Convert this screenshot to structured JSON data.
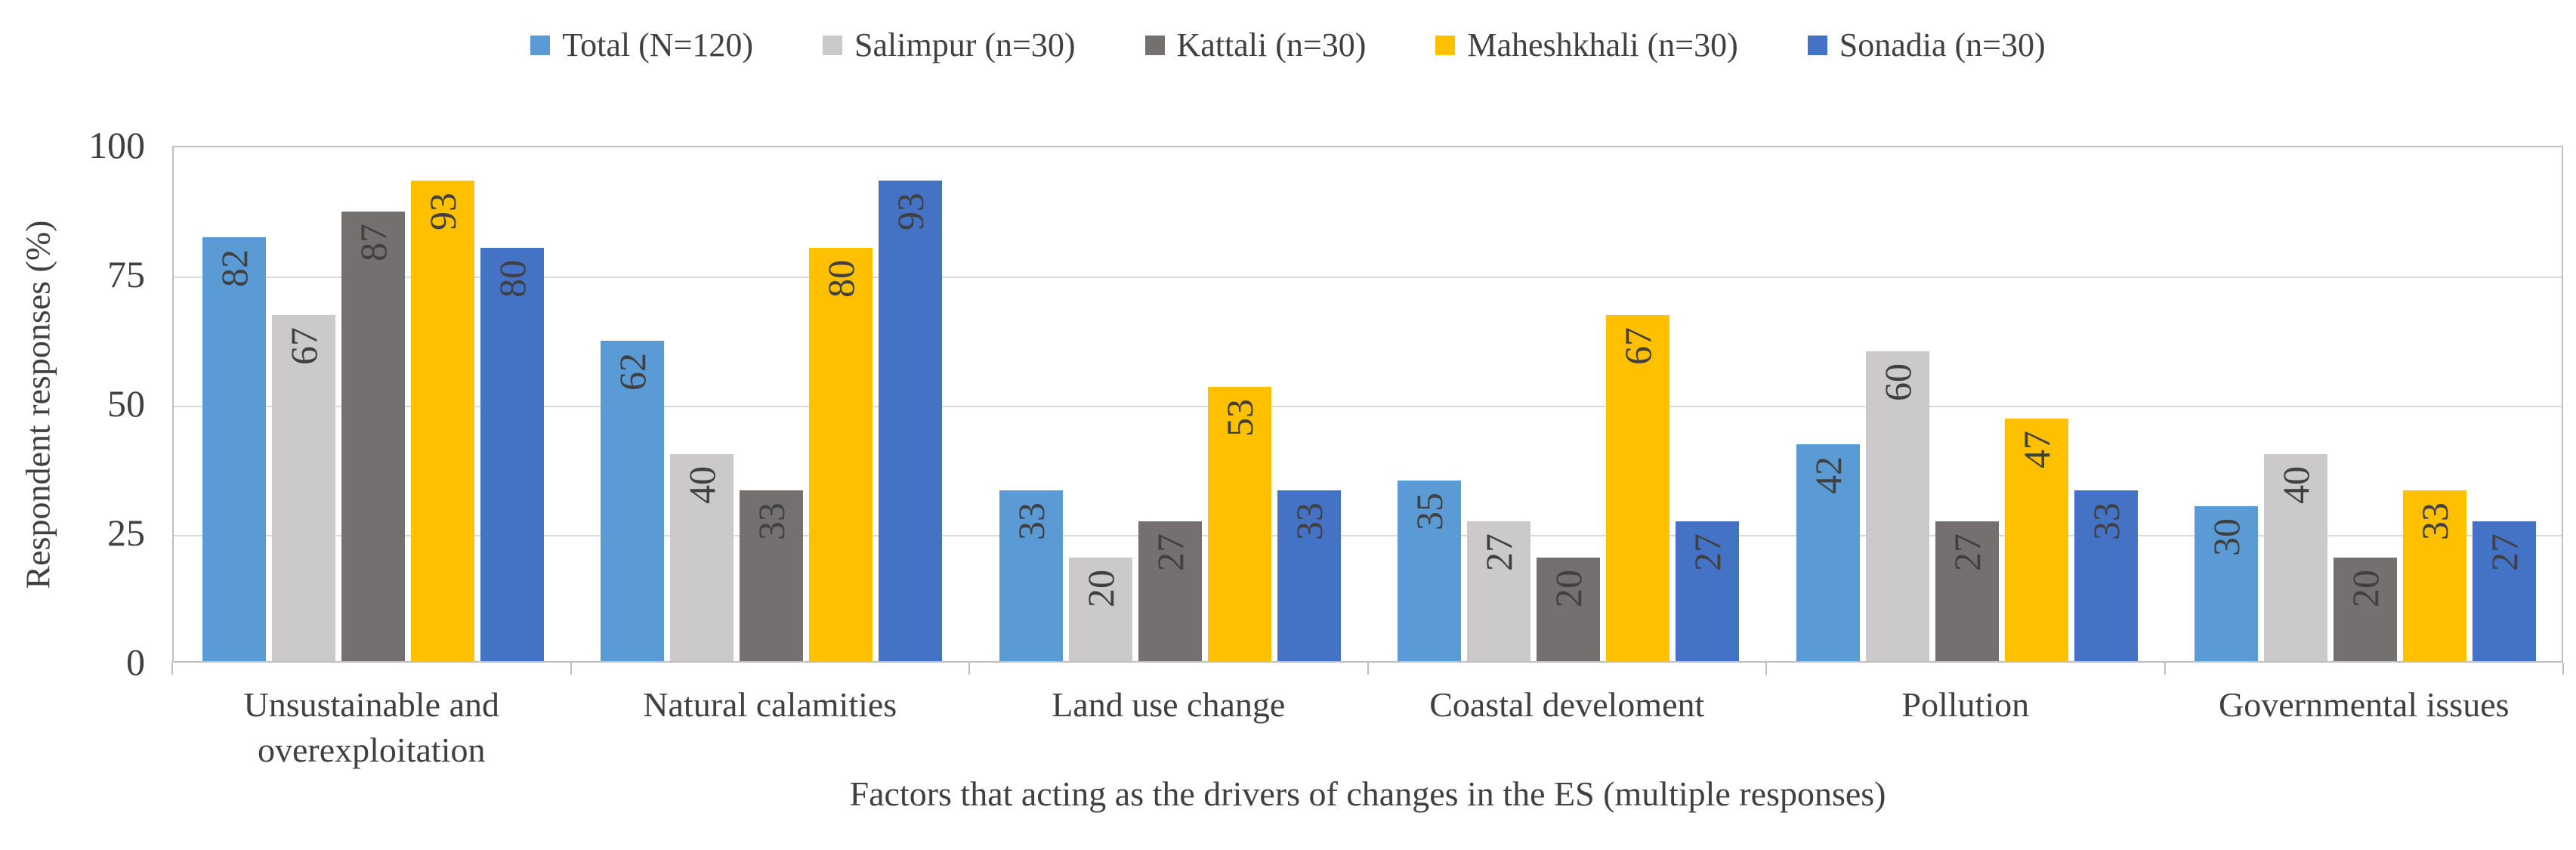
{
  "figure": {
    "background": "#FFFFFF"
  },
  "chart_data": {
    "type": "bar",
    "title": "",
    "categories": [
      "Unsustainable and overexploitation",
      "Natural calamities",
      "Land use change",
      "Coastal develoment",
      "Pollution",
      "Governmental issues"
    ],
    "series": [
      {
        "name": "Total (N=120)",
        "color": "#5B9BD5",
        "values": [
          82,
          62,
          33,
          35,
          42,
          30
        ]
      },
      {
        "name": "Salimpur (n=30)",
        "color": "#CBC9C9",
        "values": [
          67,
          40,
          20,
          27,
          60,
          40
        ]
      },
      {
        "name": "Kattali (n=30)",
        "color": "#757070",
        "values": [
          87,
          33,
          27,
          20,
          27,
          20
        ]
      },
      {
        "name": "Maheshkhali (n=30)",
        "color": "#FFC000",
        "values": [
          93,
          80,
          53,
          67,
          47,
          33
        ]
      },
      {
        "name": "Sonadia (n=30)",
        "color": "#4472C4",
        "values": [
          80,
          93,
          33,
          27,
          33,
          27
        ]
      }
    ],
    "xlabel": "Factors that acting as the drivers of changes in the ES (multiple responses)",
    "ylabel": "Respondent responses (%)",
    "ylim": [
      0,
      100
    ],
    "yticks": [
      0,
      25,
      50,
      75,
      100
    ],
    "grid": true,
    "legend_position": "top",
    "data_labels": "inside-end, rotated 90 deg (reads bottom-to-top)",
    "colors": {
      "gridline": "#D9D9D9",
      "axis_border": "#BFBFBF",
      "text": "#404040"
    }
  }
}
